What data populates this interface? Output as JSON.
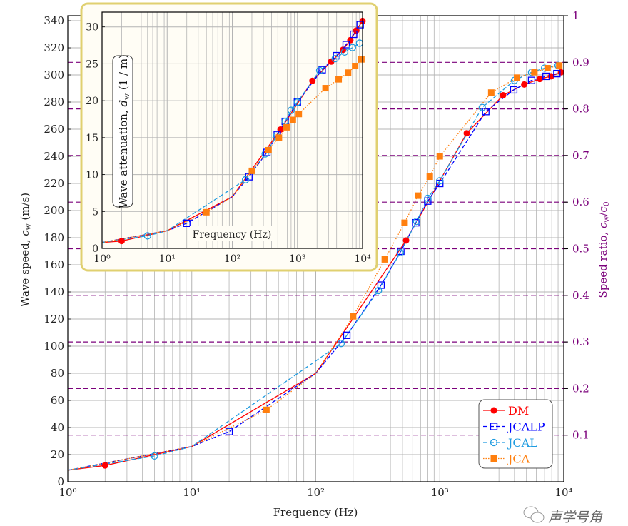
{
  "chart_data": [
    {
      "type": "line",
      "title": "",
      "xlabel": "Frequency (Hz)",
      "ylabel": {
        "text": "Wave speed, ",
        "var": "c",
        "sub": "w",
        "unit": " (m/s)"
      },
      "y2label": {
        "text": "Speed ratio, ",
        "var": "c",
        "sub": "w",
        "mid": "/",
        "var2": "c",
        "sub2": "0"
      },
      "xscale": "log",
      "xlim": [
        1,
        10000
      ],
      "ylim": [
        0,
        343.7
      ],
      "y2lim": [
        0,
        1
      ],
      "x_ticks": [
        1,
        10,
        100,
        1000,
        10000
      ],
      "x_tick_labels": [
        "10⁰",
        "10¹",
        "10²",
        "10³",
        "10⁴"
      ],
      "y_ticks": [
        0,
        20,
        40,
        60,
        80,
        100,
        120,
        140,
        160,
        180,
        200,
        220,
        240,
        260,
        280,
        300,
        320,
        340
      ],
      "y_tick_labels": [
        "0",
        "20",
        "40",
        "60",
        "80",
        "100",
        "120",
        "140",
        "160",
        "180",
        "200",
        "220",
        "240",
        "260",
        "280",
        "300",
        "320",
        "340"
      ],
      "y2_ticks": [
        0.1,
        0.2,
        0.3,
        0.4,
        0.5,
        0.6,
        0.7,
        0.8,
        0.9,
        1
      ],
      "y2_tick_labels": [
        "0.1",
        "0.2",
        "0.3",
        "0.4",
        "0.5",
        "0.6",
        "0.7",
        "0.8",
        "0.9",
        "1"
      ],
      "ratio_lines": [
        0.1,
        0.2,
        0.3,
        0.4,
        0.5,
        0.6,
        0.7,
        0.8,
        0.9
      ],
      "grid": true,
      "legend_position": "bottom-right",
      "low_freq_curve": {
        "x": [
          1,
          10,
          100
        ],
        "y": [
          8.5,
          26,
          80
        ]
      },
      "series": [
        {
          "name": "DM",
          "color": "#ff0000",
          "style": "solid",
          "marker": "filled-circle",
          "x": [
            2,
            535,
            1650,
            3240,
            4800,
            6400,
            7900,
            9500
          ],
          "y": [
            12,
            178,
            257,
            285,
            293,
            297,
            299,
            302
          ]
        },
        {
          "name": "JCALP",
          "color": "#0000ff",
          "style": "dashed",
          "marker": "open-square",
          "x": [
            20,
            178,
            336,
            485,
            640,
            800,
            1000,
            2350,
            3950,
            5500,
            7200,
            8800
          ],
          "y": [
            37,
            108,
            145,
            170,
            191,
            207,
            220,
            273,
            289,
            296,
            299,
            301
          ]
        },
        {
          "name": "JCAL",
          "color": "#1e9be0",
          "style": "dashed",
          "marker": "open-circle",
          "x": [
            5,
            160,
            320,
            480,
            650,
            800,
            1000,
            2200,
            4000,
            5500,
            7000,
            9000
          ],
          "y": [
            19,
            102,
            141,
            169,
            192,
            209,
            222,
            276,
            296,
            302,
            305,
            307
          ]
        },
        {
          "name": "JCA",
          "color": "#ff7f0e",
          "style": "dotted",
          "marker": "filled-square",
          "x": [
            40,
            200,
            360,
            520,
            670,
            830,
            1000,
            2600,
            4200,
            5800,
            7400,
            9200
          ],
          "y": [
            53,
            122,
            164,
            191,
            211,
            225,
            240,
            287,
            298,
            302,
            305,
            307
          ]
        }
      ]
    },
    {
      "type": "line",
      "title": "",
      "xlabel": "Frequency (Hz)",
      "ylabel": {
        "text": "Wave attenuation, ",
        "var": "d",
        "sub": "w",
        "unit": " (1 / m)"
      },
      "xscale": "log",
      "xlim": [
        1,
        10000
      ],
      "ylim": [
        0,
        32
      ],
      "x_ticks": [
        1,
        10,
        100,
        1000,
        10000
      ],
      "x_tick_labels": [
        "10⁰",
        "10¹",
        "10²",
        "10³",
        "10⁴"
      ],
      "y_ticks": [
        0,
        5,
        10,
        15,
        20,
        25,
        30
      ],
      "y_tick_labels": [
        "0",
        "5",
        "10",
        "15",
        "20",
        "25",
        "30"
      ],
      "grid": true,
      "low_freq_curve": {
        "x": [
          1,
          10,
          100
        ],
        "y": [
          0.8,
          2.4,
          7.0
        ]
      },
      "series": [
        {
          "name": "DM",
          "color": "#ff0000",
          "style": "solid",
          "marker": "filled-circle",
          "x": [
            2,
            550,
            1700,
            3300,
            5000,
            6500,
            8000,
            10000
          ],
          "y": [
            1.0,
            16.1,
            22.7,
            25.3,
            26.9,
            28.2,
            29.5,
            30.8
          ]
        },
        {
          "name": "JCALP",
          "color": "#0000ff",
          "style": "dashed",
          "marker": "open-square",
          "x": [
            20,
            180,
            340,
            490,
            650,
            1000,
            2400,
            4000,
            5600,
            7300,
            9200
          ],
          "y": [
            3.4,
            9.7,
            13.0,
            15.4,
            17.2,
            19.8,
            24.2,
            26.1,
            27.6,
            29.0,
            30.3
          ]
        },
        {
          "name": "JCAL",
          "color": "#1e9be0",
          "style": "dashed",
          "marker": "open-circle",
          "x": [
            5,
            160,
            320,
            480,
            650,
            800,
            1000,
            2200,
            3800,
            5300,
            7000,
            9000
          ],
          "y": [
            1.7,
            9.3,
            12.8,
            15.2,
            17.2,
            18.7,
            19.8,
            24.1,
            25.7,
            26.6,
            27.2,
            27.8
          ]
        },
        {
          "name": "JCA",
          "color": "#ff7f0e",
          "style": "dotted",
          "marker": "filled-square",
          "x": [
            40,
            200,
            360,
            520,
            680,
            850,
            1050,
            2700,
            4300,
            6000,
            7700,
            9600
          ],
          "y": [
            4.9,
            10.5,
            13.3,
            15.0,
            16.4,
            17.4,
            18.2,
            21.7,
            22.9,
            23.8,
            24.7,
            25.6
          ]
        }
      ]
    }
  ],
  "watermark": {
    "text": "声学号角"
  },
  "colors": {
    "ratio_line": "#7b007b",
    "grid": "#b4b4b4",
    "inset_border": "#e0d070",
    "inset_bg": "#fffdf5"
  }
}
